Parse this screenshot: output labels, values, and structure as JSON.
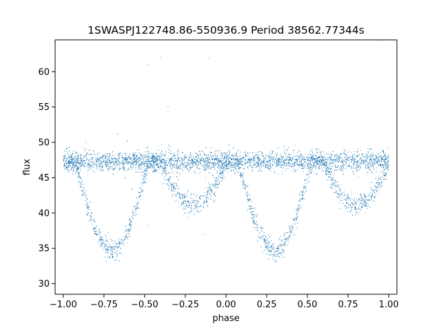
{
  "chart_data": {
    "type": "scatter",
    "title": "1SWASPJ122748.86-550936.9 Period 38562.77344s",
    "xlabel": "phase",
    "ylabel": "flux",
    "xlim": [
      -1.05,
      1.05
    ],
    "ylim": [
      28.5,
      64.5
    ],
    "x_ticks": [
      -1.0,
      -0.75,
      -0.5,
      -0.25,
      0.0,
      0.25,
      0.5,
      0.75,
      1.0
    ],
    "x_tick_labels": [
      "−1.00",
      "−0.75",
      "−0.50",
      "−0.25",
      "0.00",
      "0.25",
      "0.50",
      "0.75",
      "1.00"
    ],
    "y_ticks": [
      30,
      35,
      40,
      45,
      50,
      55,
      60
    ],
    "y_tick_labels": [
      "30",
      "35",
      "40",
      "45",
      "50",
      "55",
      "60"
    ],
    "grid": false,
    "legend": "none",
    "marker_color": "#1f77b4",
    "series": [
      {
        "baseline_flux": 47.3,
        "primary_eclipse": {
          "phase_centers": [
            -0.7,
            0.3
          ],
          "min_flux": 34.7,
          "half_width_phase": 0.23
        },
        "secondary_eclipse": {
          "phase_centers": [
            -0.2,
            0.8
          ],
          "min_flux": 41.1,
          "half_width_phase": 0.21
        },
        "scatter_sigma": 0.7,
        "approx_point_count": 14000
      }
    ]
  }
}
